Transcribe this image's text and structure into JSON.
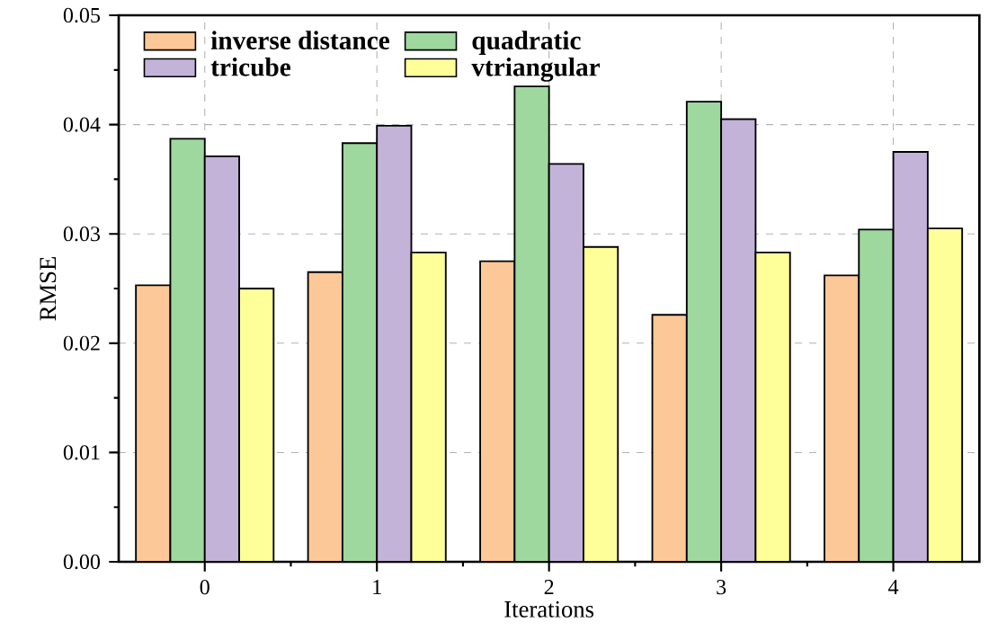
{
  "chart_data": {
    "type": "bar",
    "xlabel": "Iterations",
    "ylabel": "RMSE",
    "categories": [
      "0",
      "1",
      "2",
      "3",
      "4"
    ],
    "series": [
      {
        "name": "inverse distance",
        "color": "#fdc897",
        "values": [
          0.0253,
          0.0265,
          0.0275,
          0.0226,
          0.0262
        ]
      },
      {
        "name": "quadratic",
        "color": "#9ed89e",
        "values": [
          0.0387,
          0.0383,
          0.0435,
          0.0421,
          0.0304
        ]
      },
      {
        "name": "tricube",
        "color": "#c3b3d9",
        "values": [
          0.0371,
          0.0399,
          0.0364,
          0.0405,
          0.0375
        ]
      },
      {
        "name": "vtriangular",
        "color": "#ffff99",
        "values": [
          0.025,
          0.0283,
          0.0288,
          0.0283,
          0.0305
        ]
      }
    ],
    "ylim": [
      0,
      0.05
    ],
    "yticks": [
      {
        "value": 0,
        "label": "0.00"
      },
      {
        "value": 0.01,
        "label": "0.01"
      },
      {
        "value": 0.02,
        "label": "0.02"
      },
      {
        "value": 0.03,
        "label": "0.03"
      },
      {
        "value": 0.04,
        "label": "0.04"
      },
      {
        "value": 0.05,
        "label": "0.05"
      }
    ],
    "grid": true,
    "legend": "top left"
  }
}
